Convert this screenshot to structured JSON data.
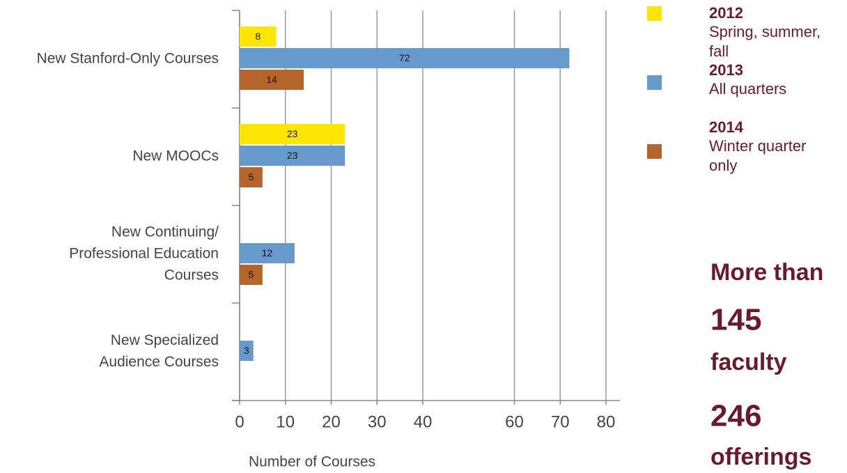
{
  "chart_data": {
    "type": "barh",
    "categories": [
      [
        "New Stanford-Only Courses"
      ],
      [
        "New MOOCs"
      ],
      [
        "New Continuing/",
        "Professional Education",
        "Courses"
      ],
      [
        "New Specialized",
        "Audience Courses"
      ]
    ],
    "series": [
      {
        "name": "2012",
        "note": [
          "Spring, summer,",
          "fall"
        ],
        "color": "#ffe600",
        "values": [
          8,
          23,
          null,
          null
        ]
      },
      {
        "name": "2013",
        "note": [
          "All quarters"
        ],
        "color": "#6699cc",
        "values": [
          72,
          23,
          12,
          3
        ]
      },
      {
        "name": "2014",
        "note": [
          "Winter quarter",
          "only"
        ],
        "color": "#b5652a",
        "values": [
          14,
          5,
          5,
          null
        ]
      }
    ],
    "xlabel": "Number of Courses",
    "xlim": [
      0,
      80
    ],
    "xticks": [
      0,
      10,
      20,
      30,
      40,
      60,
      70,
      80
    ],
    "grid": true,
    "stats": {
      "intro": "More than",
      "faculty_count": "145",
      "faculty_label": "faculty",
      "offerings_count": "246",
      "offerings_label": "offerings"
    }
  }
}
